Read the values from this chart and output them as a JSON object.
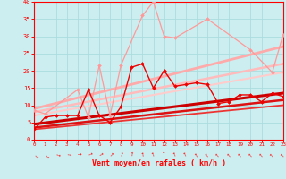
{
  "xlabel": "Vent moyen/en rafales ( km/h )",
  "xlim": [
    0,
    23
  ],
  "ylim": [
    0,
    40
  ],
  "xticks": [
    0,
    1,
    2,
    3,
    4,
    5,
    6,
    7,
    8,
    9,
    10,
    11,
    12,
    13,
    14,
    15,
    16,
    17,
    18,
    19,
    20,
    21,
    22,
    23
  ],
  "yticks": [
    0,
    5,
    10,
    15,
    20,
    25,
    30,
    35,
    40
  ],
  "bg_color": "#cceef0",
  "grid_color": "#aaddde",
  "axis_color": "#ff0000",
  "series": [
    {
      "name": "light_pink_line",
      "x": [
        0,
        1,
        4,
        5,
        6,
        7,
        8,
        10,
        11,
        12,
        13,
        16,
        20,
        22,
        23
      ],
      "y": [
        8.5,
        7.5,
        14.5,
        6.5,
        21.5,
        7,
        21.5,
        36,
        40,
        30,
        29.5,
        35,
        26,
        19.5,
        30.5
      ],
      "color": "#ff9999",
      "lw": 0.9,
      "marker": "D",
      "ms": 2.0,
      "zorder": 4
    },
    {
      "name": "pink_trend_upper",
      "x": [
        0,
        23
      ],
      "y": [
        9.0,
        27.0
      ],
      "color": "#ffaaaa",
      "lw": 2.0,
      "zorder": 2
    },
    {
      "name": "pink_trend_mid",
      "x": [
        0,
        23
      ],
      "y": [
        8.0,
        22.0
      ],
      "color": "#ffbbbb",
      "lw": 1.8,
      "zorder": 2
    },
    {
      "name": "pink_trend_lower",
      "x": [
        0,
        23
      ],
      "y": [
        7.0,
        19.5
      ],
      "color": "#ffcccc",
      "lw": 1.5,
      "zorder": 2
    },
    {
      "name": "red_line",
      "x": [
        0,
        1,
        2,
        3,
        4,
        5,
        6,
        7,
        8,
        9,
        10,
        11,
        12,
        13,
        14,
        15,
        16,
        17,
        18,
        19,
        20,
        21,
        22,
        23
      ],
      "y": [
        3,
        6.5,
        7,
        7,
        7,
        14.5,
        7,
        5,
        9.5,
        21,
        22,
        15,
        20,
        15.5,
        16,
        16.5,
        16,
        10.5,
        11,
        13,
        13,
        11,
        13.5,
        12.5
      ],
      "color": "#ee0000",
      "lw": 1.0,
      "marker": "D",
      "ms": 2.0,
      "zorder": 5
    },
    {
      "name": "red_trend_upper",
      "x": [
        0,
        23
      ],
      "y": [
        4.5,
        13.5
      ],
      "color": "#cc0000",
      "lw": 2.2,
      "zorder": 3
    },
    {
      "name": "red_trend_mid",
      "x": [
        0,
        23
      ],
      "y": [
        3.5,
        11.5
      ],
      "color": "#dd1111",
      "lw": 1.8,
      "zorder": 3
    },
    {
      "name": "red_trend_lower",
      "x": [
        0,
        23
      ],
      "y": [
        3.0,
        10.0
      ],
      "color": "#ee3333",
      "lw": 1.3,
      "zorder": 3
    }
  ],
  "wind_arrows": {
    "x": [
      0,
      1,
      2,
      3,
      4,
      5,
      6,
      7,
      8,
      9,
      10,
      11,
      12,
      13,
      14,
      15,
      16,
      17,
      18,
      19,
      20,
      21,
      22,
      23
    ],
    "angles_deg": [
      225,
      225,
      200,
      190,
      180,
      160,
      150,
      135,
      110,
      100,
      80,
      70,
      90,
      70,
      65,
      60,
      55,
      50,
      50,
      50,
      50,
      50,
      45,
      45
    ]
  }
}
